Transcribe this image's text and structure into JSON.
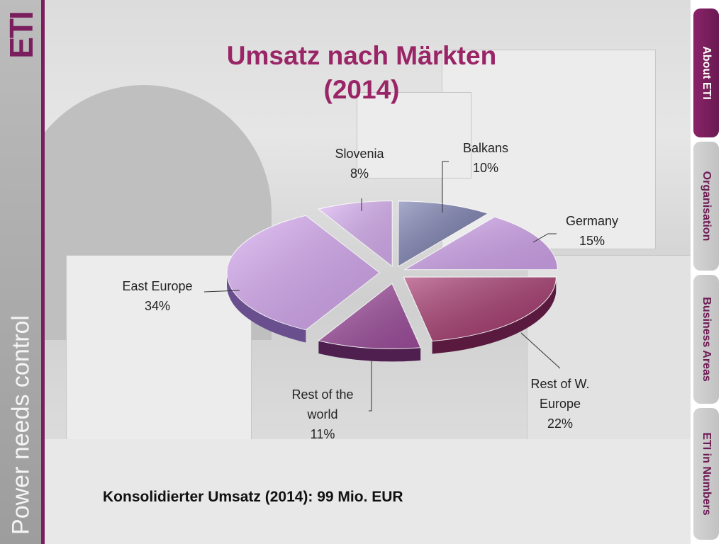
{
  "brand": {
    "logo_text": "ETI",
    "slogan": "Power needs control",
    "accent": "#7b1e5e"
  },
  "nav": {
    "items": [
      {
        "label": "About ETI",
        "active": true
      },
      {
        "label": "Organisation",
        "active": false
      },
      {
        "label": "Business Areas",
        "active": false
      },
      {
        "label": "ETI in Numbers",
        "active": false
      }
    ]
  },
  "footer": {
    "note": "Konsolidierter Umsatz (2014): 99 Mio. EUR"
  },
  "chart_data": {
    "type": "pie",
    "title_line1": "Umsatz nach Märkten",
    "title_line2": "(2014)",
    "slices": [
      {
        "label": "Balkans",
        "value": 10,
        "pct_label": "10%",
        "color": "#7a7fb0",
        "side": "#464a78"
      },
      {
        "label": "Germany",
        "value": 15,
        "pct_label": "15%",
        "color": "#d6a8f2",
        "side": "#6a4f8f"
      },
      {
        "label": "Rest of W. Europe",
        "value": 22,
        "pct_label": "22%",
        "color": "#a6386e",
        "side": "#5a1a3f"
      },
      {
        "label": "Rest of the world",
        "value": 11,
        "pct_label": "11%",
        "color": "#a14fa0",
        "side": "#4e1f4f"
      },
      {
        "label": "East Europe",
        "value": 34,
        "pct_label": "34%",
        "color": "#d8aaf4",
        "side": "#6a4f8f"
      },
      {
        "label": "Slovenia",
        "value": 8,
        "pct_label": "8%",
        "color": "#dcb2f6",
        "side": "#6a4f8f"
      }
    ]
  }
}
